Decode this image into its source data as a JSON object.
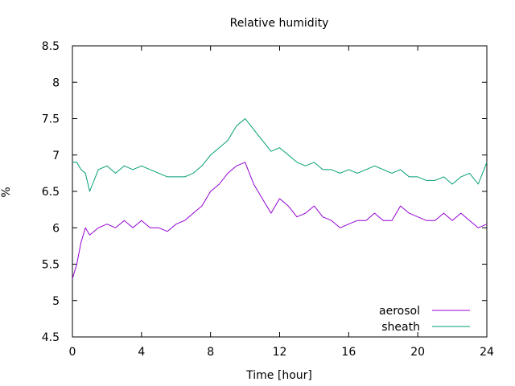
{
  "chart_data": {
    "type": "line",
    "title": "Relative humidity",
    "xlabel": "Time [hour]",
    "ylabel": "%",
    "xlim": [
      0,
      24
    ],
    "ylim": [
      4.5,
      8.5
    ],
    "xticks": [
      0,
      4,
      8,
      12,
      16,
      20,
      24
    ],
    "yticks": [
      4.5,
      5,
      5.5,
      6,
      6.5,
      7,
      7.5,
      8,
      8.5
    ],
    "grid": false,
    "legend_position": "bottom-right",
    "series": [
      {
        "name": "aerosol",
        "color": "#9400d3",
        "x": [
          0,
          0.25,
          0.5,
          0.75,
          1,
          1.5,
          2,
          2.5,
          3,
          3.5,
          4,
          4.5,
          5,
          5.5,
          6,
          6.5,
          7,
          7.5,
          8,
          8.5,
          9,
          9.5,
          10,
          10.5,
          11,
          11.5,
          12,
          12.5,
          13,
          13.5,
          14,
          14.5,
          15,
          15.5,
          16,
          16.5,
          17,
          17.5,
          18,
          18.5,
          19,
          19.5,
          20,
          20.5,
          21,
          21.5,
          22,
          22.5,
          23,
          23.5,
          24
        ],
        "y": [
          5.3,
          5.5,
          5.8,
          6.0,
          5.9,
          6.0,
          6.05,
          6.0,
          6.1,
          6.0,
          6.1,
          6.0,
          6.0,
          5.95,
          6.05,
          6.1,
          6.2,
          6.3,
          6.5,
          6.6,
          6.75,
          6.85,
          6.9,
          6.6,
          6.4,
          6.2,
          6.4,
          6.3,
          6.15,
          6.2,
          6.3,
          6.15,
          6.1,
          6.0,
          6.05,
          6.1,
          6.1,
          6.2,
          6.1,
          6.1,
          6.3,
          6.2,
          6.15,
          6.1,
          6.1,
          6.2,
          6.1,
          6.2,
          6.1,
          6.0,
          6.05
        ]
      },
      {
        "name": "sheath",
        "color": "#009e73",
        "x": [
          0,
          0.25,
          0.5,
          0.75,
          1,
          1.5,
          2,
          2.5,
          3,
          3.5,
          4,
          4.5,
          5,
          5.5,
          6,
          6.5,
          7,
          7.5,
          8,
          8.5,
          9,
          9.5,
          10,
          10.5,
          11,
          11.5,
          12,
          12.5,
          13,
          13.5,
          14,
          14.5,
          15,
          15.5,
          16,
          16.5,
          17,
          17.5,
          18,
          18.5,
          19,
          19.5,
          20,
          20.5,
          21,
          21.5,
          22,
          22.5,
          23,
          23.5,
          24
        ],
        "y": [
          6.9,
          6.9,
          6.8,
          6.75,
          6.5,
          6.8,
          6.85,
          6.75,
          6.85,
          6.8,
          6.85,
          6.8,
          6.75,
          6.7,
          6.7,
          6.7,
          6.75,
          6.85,
          7.0,
          7.1,
          7.2,
          7.4,
          7.5,
          7.35,
          7.2,
          7.05,
          7.1,
          7.0,
          6.9,
          6.85,
          6.9,
          6.8,
          6.8,
          6.75,
          6.8,
          6.75,
          6.8,
          6.85,
          6.8,
          6.75,
          6.8,
          6.7,
          6.7,
          6.65,
          6.65,
          6.7,
          6.6,
          6.7,
          6.75,
          6.6,
          6.9
        ]
      }
    ]
  }
}
